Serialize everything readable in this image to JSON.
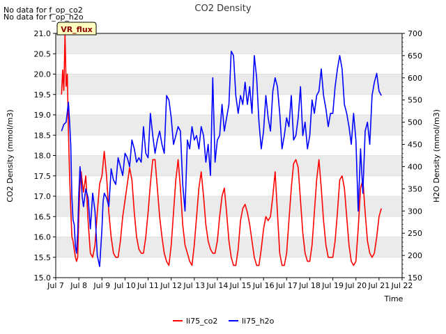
{
  "notices": [
    "No data for f_op_co2",
    "No data for f_op_h2o"
  ],
  "badge": "VR_flux",
  "chart_data": {
    "type": "line",
    "title": "CO2 Density",
    "xlabel": "Time",
    "ylabel": "CO2 Density (mmol/m3)",
    "y2label": "H2O Density (mmol/m3)",
    "x_ticks": [
      "Jul 7",
      "Jul 8",
      "Jul 9",
      "Jul 10",
      "Jul 11",
      "Jul 12",
      "Jul 13",
      "Jul 14",
      "Jul 15",
      "Jul 16",
      "Jul 17",
      "Jul 18",
      "Jul 19",
      "Jul 20",
      "Jul 21",
      "Jul 22"
    ],
    "xlim": [
      7,
      22
    ],
    "ylim": [
      15.0,
      21.0
    ],
    "y_ticks": [
      "15.0",
      "15.5",
      "16.0",
      "16.5",
      "17.0",
      "17.5",
      "18.0",
      "18.5",
      "19.0",
      "19.5",
      "20.0",
      "20.5",
      "21.0"
    ],
    "y2lim": [
      150,
      700
    ],
    "y2_ticks": [
      "150",
      "200",
      "250",
      "300",
      "350",
      "400",
      "450",
      "500",
      "550",
      "600",
      "650",
      "700"
    ],
    "grid": "horizontal bands",
    "legend_position": "bottom",
    "series": [
      {
        "name": "li75_co2",
        "axis": "left",
        "color": "#ff0000",
        "x": [
          7.25,
          7.3,
          7.35,
          7.4,
          7.45,
          7.5,
          7.55,
          7.6,
          7.65,
          7.7,
          7.75,
          7.8,
          7.85,
          7.9,
          7.95,
          8.0,
          8.05,
          8.1,
          8.2,
          8.3,
          8.4,
          8.5,
          8.6,
          8.7,
          8.8,
          8.9,
          9.0,
          9.1,
          9.2,
          9.3,
          9.4,
          9.5,
          9.6,
          9.7,
          9.8,
          9.9,
          10.0,
          10.1,
          10.2,
          10.3,
          10.4,
          10.5,
          10.6,
          10.7,
          10.8,
          10.9,
          11.0,
          11.1,
          11.2,
          11.3,
          11.4,
          11.5,
          11.6,
          11.7,
          11.8,
          11.9,
          12.0,
          12.1,
          12.2,
          12.3,
          12.4,
          12.5,
          12.6,
          12.7,
          12.8,
          12.9,
          13.0,
          13.1,
          13.2,
          13.3,
          13.4,
          13.5,
          13.6,
          13.7,
          13.8,
          13.9,
          14.0,
          14.1,
          14.2,
          14.3,
          14.4,
          14.5,
          14.6,
          14.7,
          14.8,
          14.9,
          15.0,
          15.1,
          15.2,
          15.3,
          15.4,
          15.5,
          15.6,
          15.7,
          15.8,
          15.9,
          16.0,
          16.1,
          16.2,
          16.3,
          16.4,
          16.5,
          16.6,
          16.7,
          16.8,
          16.9,
          17.0,
          17.1,
          17.2,
          17.3,
          17.4,
          17.5,
          17.6,
          17.7,
          17.8,
          17.9,
          18.0,
          18.1,
          18.2,
          18.3,
          18.4,
          18.5,
          18.6,
          18.7,
          18.8,
          18.9,
          19.0,
          19.1,
          19.2,
          19.3,
          19.4,
          19.5,
          19.6,
          19.7,
          19.8,
          19.9,
          20.0,
          20.1,
          20.2,
          20.3,
          20.4,
          20.5,
          20.6,
          20.7,
          20.8,
          20.9,
          21.0,
          21.1
        ],
        "values": [
          19.5,
          20.1,
          19.6,
          21.0,
          19.7,
          20.0,
          18.6,
          17.5,
          16.7,
          16.0,
          15.9,
          15.7,
          15.5,
          15.4,
          15.5,
          16.5,
          17.3,
          17.6,
          17.1,
          17.5,
          16.4,
          15.6,
          15.5,
          15.8,
          16.6,
          17.3,
          17.5,
          18.1,
          17.5,
          16.6,
          16.0,
          15.6,
          15.5,
          15.5,
          15.9,
          16.5,
          16.9,
          17.3,
          17.7,
          17.4,
          16.6,
          16.0,
          15.7,
          15.6,
          15.6,
          16.0,
          16.6,
          17.3,
          17.9,
          17.9,
          17.2,
          16.5,
          16.0,
          15.6,
          15.4,
          15.3,
          15.8,
          16.6,
          17.4,
          17.9,
          17.2,
          16.3,
          15.8,
          15.6,
          15.4,
          15.3,
          15.8,
          16.5,
          17.2,
          17.6,
          17.0,
          16.3,
          15.9,
          15.7,
          15.6,
          15.6,
          15.9,
          16.5,
          17.0,
          17.2,
          16.6,
          15.9,
          15.5,
          15.3,
          15.3,
          15.7,
          16.4,
          16.7,
          16.8,
          16.6,
          16.3,
          15.9,
          15.5,
          15.3,
          15.3,
          15.7,
          16.2,
          16.5,
          16.4,
          16.5,
          17.0,
          17.6,
          16.6,
          15.6,
          15.3,
          15.3,
          15.6,
          16.4,
          17.2,
          17.8,
          17.9,
          17.7,
          16.9,
          16.1,
          15.6,
          15.4,
          15.4,
          15.8,
          16.6,
          17.4,
          17.9,
          17.2,
          16.4,
          15.8,
          15.5,
          15.5,
          15.5,
          15.9,
          16.6,
          17.4,
          17.5,
          17.2,
          16.5,
          15.8,
          15.4,
          15.3,
          15.4,
          16.2,
          17.2,
          17.4,
          16.6,
          15.9,
          15.6,
          15.5,
          15.6,
          16.0,
          16.5,
          16.7
        ]
      },
      {
        "name": "li75_h2o",
        "axis": "right",
        "color": "#0000ff",
        "x": [
          7.25,
          7.35,
          7.45,
          7.55,
          7.6,
          7.65,
          7.7,
          7.75,
          7.8,
          7.85,
          7.9,
          7.95,
          8.0,
          8.05,
          8.1,
          8.15,
          8.2,
          8.3,
          8.4,
          8.5,
          8.6,
          8.7,
          8.8,
          8.9,
          9.0,
          9.05,
          9.1,
          9.2,
          9.3,
          9.4,
          9.5,
          9.6,
          9.7,
          9.8,
          9.9,
          10.0,
          10.1,
          10.2,
          10.3,
          10.4,
          10.5,
          10.6,
          10.7,
          10.8,
          10.9,
          11.0,
          11.1,
          11.2,
          11.3,
          11.4,
          11.5,
          11.6,
          11.7,
          11.8,
          11.9,
          12.0,
          12.1,
          12.2,
          12.3,
          12.4,
          12.5,
          12.6,
          12.7,
          12.8,
          12.9,
          13.0,
          13.1,
          13.2,
          13.3,
          13.4,
          13.5,
          13.6,
          13.7,
          13.8,
          13.9,
          14.0,
          14.1,
          14.2,
          14.3,
          14.4,
          14.5,
          14.6,
          14.7,
          14.8,
          14.9,
          15.0,
          15.1,
          15.2,
          15.3,
          15.4,
          15.5,
          15.6,
          15.7,
          15.8,
          15.9,
          16.0,
          16.1,
          16.2,
          16.3,
          16.4,
          16.5,
          16.6,
          16.7,
          16.8,
          16.9,
          17.0,
          17.1,
          17.2,
          17.3,
          17.4,
          17.5,
          17.6,
          17.7,
          17.8,
          17.9,
          18.0,
          18.1,
          18.2,
          18.3,
          18.4,
          18.5,
          18.6,
          18.7,
          18.8,
          18.9,
          19.0,
          19.1,
          19.2,
          19.3,
          19.4,
          19.5,
          19.6,
          19.7,
          19.8,
          19.9,
          20.0,
          20.1,
          20.2,
          20.3,
          20.4,
          20.5,
          20.6,
          20.7,
          20.8,
          20.9,
          21.0,
          21.1
        ],
        "values": [
          480,
          495,
          500,
          545,
          500,
          450,
          330,
          280,
          270,
          220,
          205,
          250,
          340,
          400,
          370,
          330,
          310,
          350,
          330,
          260,
          340,
          300,
          200,
          175,
          260,
          320,
          340,
          330,
          310,
          395,
          370,
          360,
          420,
          400,
          380,
          430,
          420,
          400,
          460,
          440,
          410,
          420,
          410,
          490,
          430,
          420,
          520,
          470,
          430,
          460,
          480,
          450,
          430,
          560,
          550,
          510,
          450,
          470,
          490,
          480,
          360,
          300,
          460,
          440,
          490,
          460,
          470,
          440,
          490,
          470,
          410,
          450,
          380,
          600,
          410,
          460,
          470,
          540,
          480,
          510,
          540,
          660,
          650,
          560,
          520,
          560,
          540,
          590,
          540,
          580,
          520,
          650,
          600,
          500,
          440,
          480,
          560,
          510,
          480,
          570,
          600,
          580,
          520,
          440,
          470,
          510,
          490,
          560,
          460,
          470,
          510,
          580,
          470,
          500,
          440,
          470,
          550,
          520,
          560,
          570,
          620,
          560,
          530,
          490,
          520,
          520,
          580,
          620,
          650,
          620,
          540,
          520,
          490,
          450,
          520,
          460,
          300,
          440,
          340,
          480,
          500,
          450,
          560,
          590,
          610,
          570,
          560
        ]
      }
    ]
  }
}
